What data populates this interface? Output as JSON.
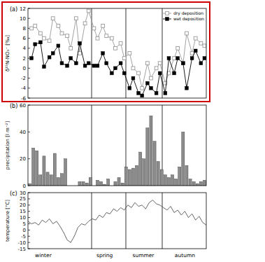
{
  "chart_data": [
    {
      "type": "line",
      "title": "(a)",
      "y_label": "δ¹⁵N-NO₃⁻ [‰]",
      "x": [
        2,
        4,
        7,
        9,
        12,
        14,
        17,
        19,
        22,
        24,
        27,
        29,
        32,
        34,
        37,
        39,
        42,
        44,
        47,
        49,
        52,
        54,
        57,
        59,
        62,
        64,
        67,
        69,
        72,
        74,
        77,
        79,
        82,
        84,
        87,
        89,
        92,
        94,
        97,
        99
      ],
      "series": [
        {
          "name": "dry deposition",
          "color": "#999999",
          "marker": "square-open",
          "values": [
            8,
            8.5,
            7,
            6,
            5.5,
            10,
            8.5,
            7,
            6.5,
            4,
            10,
            3,
            9,
            11.5,
            8,
            6,
            8.5,
            6.5,
            6,
            4,
            5,
            2,
            3,
            0,
            -1,
            -4,
            1,
            -2,
            0,
            1,
            -3,
            -1,
            2,
            4,
            1,
            7,
            3,
            6,
            5,
            4.5
          ]
        },
        {
          "name": "wet deposition",
          "color": "#000000",
          "marker": "square",
          "values": [
            2,
            4.8,
            5.2,
            0.3,
            2.2,
            3,
            4.5,
            1,
            0.5,
            2,
            1,
            5,
            0.5,
            1,
            0.5,
            0.5,
            3,
            1,
            -1,
            0,
            1,
            -1,
            -4,
            -2,
            -5,
            -5.5,
            -3,
            -4,
            -5,
            -1,
            -5,
            2,
            -1,
            2,
            1,
            -4,
            2,
            3.5,
            1,
            2
          ]
        }
      ],
      "xlim": [
        0,
        100
      ],
      "ylim": [
        -6,
        12
      ],
      "yticks": [
        -6,
        -4,
        -2,
        0,
        2,
        4,
        6,
        8,
        10,
        12
      ],
      "season_boundaries": [
        35.7,
        54.9,
        75.3
      ],
      "legend": "upper right",
      "tick_labels": "y"
    },
    {
      "type": "bar",
      "title": "(b)",
      "y_label": "precipitation [l m⁻²]",
      "x": [
        1,
        3,
        5,
        7,
        9,
        11,
        13,
        15,
        17,
        19,
        21,
        23,
        25,
        27,
        29,
        31,
        33,
        35,
        37,
        39,
        41,
        43,
        45,
        47,
        49,
        51,
        53,
        55,
        57,
        59,
        61,
        63,
        65,
        67,
        69,
        71,
        73,
        75,
        77,
        79,
        81,
        83,
        85,
        87,
        89,
        91,
        93,
        95,
        97,
        99
      ],
      "values": [
        1.5,
        28,
        26,
        8,
        22,
        10,
        8,
        24,
        6,
        9,
        20,
        0,
        0,
        0,
        3,
        3,
        2,
        6,
        0,
        4,
        3,
        1,
        5,
        0,
        3,
        6,
        2,
        14,
        12,
        13,
        15,
        25,
        20,
        43,
        52,
        33,
        18,
        12,
        8,
        6,
        8,
        5,
        14,
        40,
        15,
        5,
        3,
        1.5,
        3,
        4
      ],
      "color": "#8c8c8c",
      "xlim": [
        0,
        100
      ],
      "ylim": [
        0,
        60
      ],
      "yticks": [
        0,
        20,
        40,
        60
      ],
      "season_boundaries": [
        35.7,
        54.9,
        75.3
      ],
      "tick_labels": "y"
    },
    {
      "type": "line",
      "title": "(c)",
      "y_label": "temperature [°C]",
      "x": [
        0,
        2,
        4,
        6,
        8,
        10,
        12,
        14,
        16,
        18,
        20,
        22,
        24,
        26,
        28,
        30,
        32,
        34,
        36,
        38,
        40,
        42,
        44,
        46,
        48,
        50,
        52,
        54,
        56,
        58,
        60,
        62,
        64,
        66,
        68,
        70,
        72,
        74,
        76,
        78,
        80,
        82,
        84,
        86,
        88,
        90,
        92,
        94,
        96,
        98,
        100
      ],
      "series": [
        {
          "name": "temperature",
          "color": "#555555",
          "values": [
            7,
            5,
            6,
            4,
            8,
            6,
            9,
            5,
            7,
            3,
            -2,
            -8,
            -10,
            -5,
            2,
            5,
            4,
            7,
            9,
            8,
            12,
            10,
            14,
            13,
            17,
            15,
            18,
            16,
            20,
            18,
            22,
            19,
            20,
            17,
            22,
            24,
            21,
            20,
            18,
            16,
            19,
            14,
            16,
            12,
            15,
            10,
            13,
            8,
            11,
            6,
            4
          ]
        }
      ],
      "xlim": [
        0,
        100
      ],
      "ylim": [
        -15,
        30
      ],
      "yticks": [
        -15,
        -10,
        -5,
        0,
        5,
        10,
        15,
        20,
        25,
        30
      ],
      "season_boundaries": [
        35.7,
        54.9,
        75.3
      ],
      "tick_labels": "y",
      "annotations": [
        {
          "text": "winter",
          "x": 8.6
        },
        {
          "text": "spring",
          "x": 43
        },
        {
          "text": "summer",
          "x": 64.7
        },
        {
          "text": "autumn",
          "x": 88
        }
      ]
    }
  ]
}
